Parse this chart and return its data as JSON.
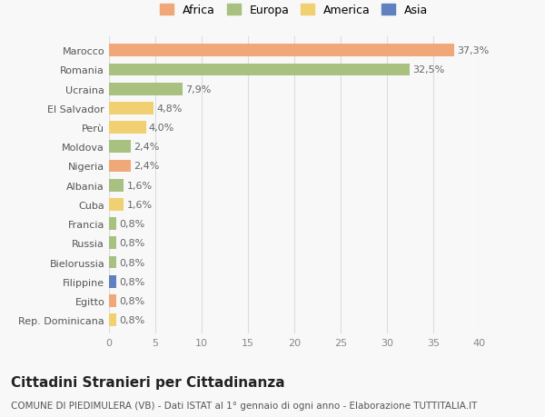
{
  "countries": [
    "Marocco",
    "Romania",
    "Ucraina",
    "El Salvador",
    "Perù",
    "Moldova",
    "Nigeria",
    "Albania",
    "Cuba",
    "Francia",
    "Russia",
    "Bielorussia",
    "Filippine",
    "Egitto",
    "Rep. Dominicana"
  ],
  "values": [
    37.3,
    32.5,
    7.9,
    4.8,
    4.0,
    2.4,
    2.4,
    1.6,
    1.6,
    0.8,
    0.8,
    0.8,
    0.8,
    0.8,
    0.8
  ],
  "labels": [
    "37,3%",
    "32,5%",
    "7,9%",
    "4,8%",
    "4,0%",
    "2,4%",
    "2,4%",
    "1,6%",
    "1,6%",
    "0,8%",
    "0,8%",
    "0,8%",
    "0,8%",
    "0,8%",
    "0,8%"
  ],
  "colors": [
    "#F0A878",
    "#A8C080",
    "#A8C080",
    "#F0D070",
    "#F0D070",
    "#A8C080",
    "#F0A878",
    "#A8C080",
    "#F0D070",
    "#A8C080",
    "#A8C080",
    "#A8C080",
    "#6080C0",
    "#F0A878",
    "#F0D070"
  ],
  "continent_labels": [
    "Africa",
    "Europa",
    "America",
    "Asia"
  ],
  "continent_colors": [
    "#F0A878",
    "#A8C080",
    "#F0D070",
    "#6080C0"
  ],
  "title": "Cittadini Stranieri per Cittadinanza",
  "subtitle": "COMUNE DI PIEDIMULERA (VB) - Dati ISTAT al 1° gennaio di ogni anno - Elaborazione TUTTITALIA.IT",
  "xlim": [
    0,
    40
  ],
  "xticks": [
    0,
    5,
    10,
    15,
    20,
    25,
    30,
    35,
    40
  ],
  "bg_color": "#F8F8F8",
  "grid_color": "#DDDDDD",
  "bar_height": 0.65,
  "label_fontsize": 8,
  "tick_fontsize": 8,
  "title_fontsize": 11,
  "subtitle_fontsize": 7.5
}
